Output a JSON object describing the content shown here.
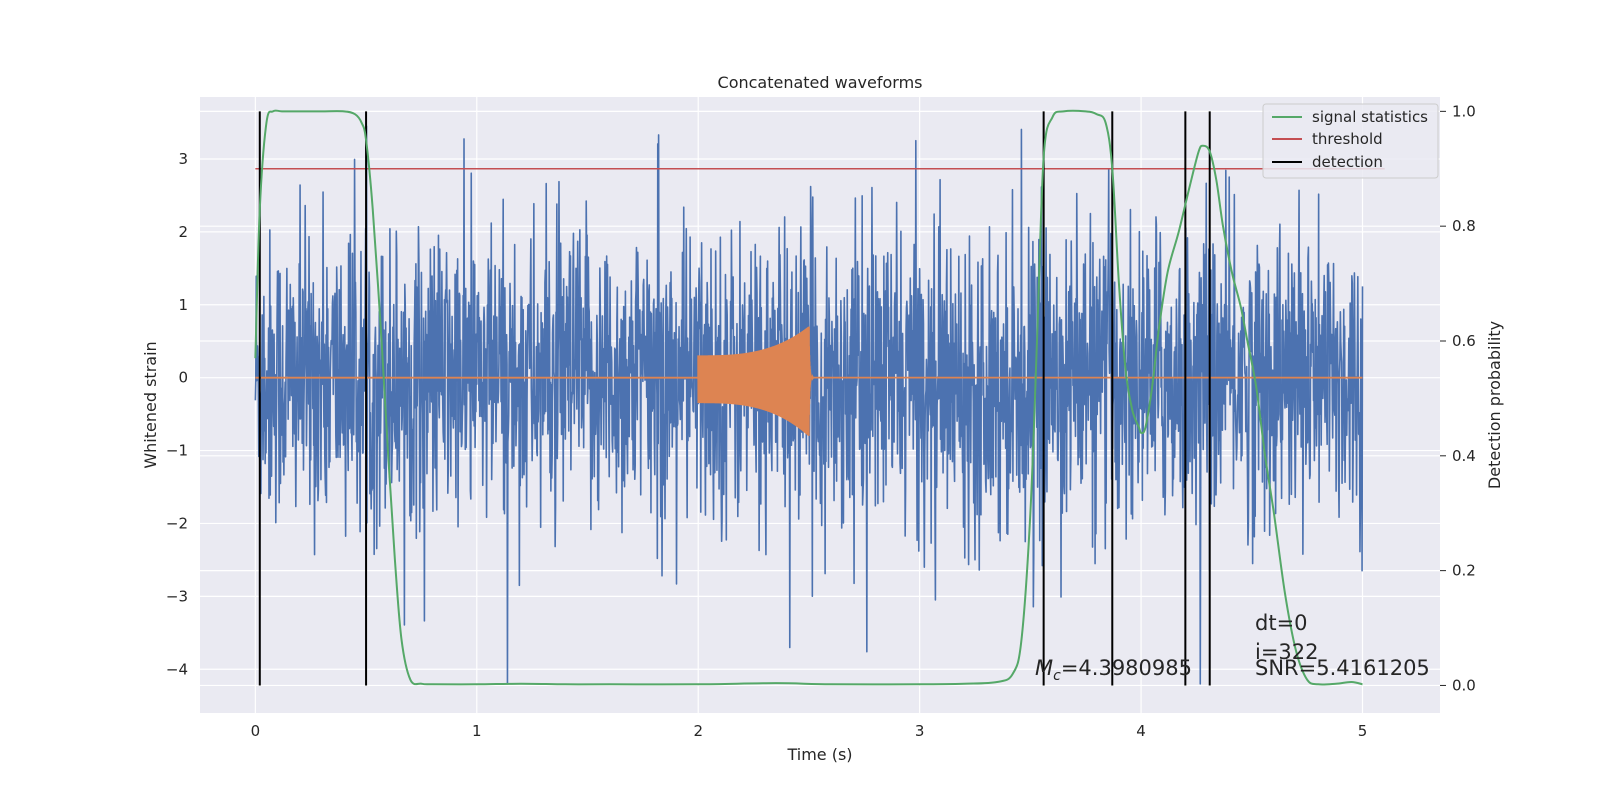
{
  "chart_data": {
    "type": "line",
    "title": "Concatenated waveforms",
    "xlabel": "Time (s)",
    "ylabel": "Whitened strain",
    "ylabel_right": "Detection probability",
    "xlim": [
      -0.25,
      5.35
    ],
    "ylim": [
      -4.6,
      3.85
    ],
    "ylim_right": [
      -0.048,
      1.025
    ],
    "xticks": [
      0,
      1,
      2,
      3,
      4,
      5
    ],
    "xtick_labels": [
      "0",
      "1",
      "2",
      "3",
      "4",
      "5"
    ],
    "yticks": [
      -4,
      -3,
      -2,
      -1,
      0,
      1,
      2,
      3
    ],
    "ytick_labels": [
      "−4",
      "−3",
      "−2",
      "−1",
      "0",
      "1",
      "2",
      "3"
    ],
    "yticks_right": [
      0.0,
      0.2,
      0.4,
      0.6,
      0.8,
      1.0
    ],
    "ytick_labels_right": [
      "0.0",
      "0.2",
      "0.4",
      "0.6",
      "0.8",
      "1.0"
    ],
    "grid": true,
    "legend_position": "top-right",
    "colors": {
      "strain": "#4c72b0",
      "template": "#dd8452",
      "signal_statistics": "#55a868",
      "threshold": "#c44e52",
      "detection": "#000000",
      "background": "#eaeaf2",
      "grid": "#ffffff"
    },
    "series": [
      {
        "name": "signal statistics",
        "axis": "right",
        "x": [
          0.0,
          0.02,
          0.05,
          0.08,
          0.12,
          0.2,
          0.3,
          0.4,
          0.45,
          0.48,
          0.5,
          0.53,
          0.57,
          0.6,
          0.63,
          0.66,
          0.7,
          0.75,
          0.8,
          1.0,
          1.2,
          1.4,
          1.6,
          2.0,
          2.35,
          2.6,
          3.0,
          3.2,
          3.35,
          3.42,
          3.46,
          3.5,
          3.53,
          3.56,
          3.6,
          3.65,
          3.75,
          3.8,
          3.84,
          3.87,
          3.9,
          3.93,
          3.96,
          3.99,
          4.0,
          4.02,
          4.05,
          4.08,
          4.12,
          4.17,
          4.22,
          4.26,
          4.28,
          4.31,
          4.34,
          4.37,
          4.41,
          4.45,
          4.48,
          4.52,
          4.56,
          4.6,
          4.65,
          4.7,
          4.75,
          4.8,
          4.88,
          4.95,
          5.0
        ],
        "y": [
          0.57,
          0.83,
          0.98,
          1.0,
          1.0,
          1.0,
          1.0,
          1.0,
          0.995,
          0.98,
          0.95,
          0.83,
          0.6,
          0.4,
          0.22,
          0.08,
          0.01,
          0.003,
          0.002,
          0.002,
          0.003,
          0.002,
          0.002,
          0.002,
          0.004,
          0.002,
          0.002,
          0.003,
          0.006,
          0.02,
          0.08,
          0.3,
          0.6,
          0.92,
          0.99,
          1.0,
          1.0,
          0.995,
          0.98,
          0.9,
          0.7,
          0.55,
          0.48,
          0.45,
          0.44,
          0.45,
          0.52,
          0.62,
          0.72,
          0.79,
          0.87,
          0.93,
          0.94,
          0.93,
          0.88,
          0.8,
          0.72,
          0.66,
          0.6,
          0.52,
          0.4,
          0.3,
          0.16,
          0.06,
          0.01,
          0.002,
          0.003,
          0.006,
          0.002
        ]
      },
      {
        "name": "threshold",
        "axis": "right",
        "x": [
          0.0,
          5.1
        ],
        "y": [
          0.9,
          0.9
        ]
      },
      {
        "name": "detection",
        "axis": "right",
        "x_positions": [
          0.02,
          0.5,
          3.56,
          3.87,
          4.2,
          4.31
        ],
        "y_range": [
          0.0,
          1.0
        ]
      },
      {
        "axis": "left",
        "kind": "noise_strain",
        "x_range": [
          0.0,
          5.0
        ],
        "typical_range": [
          -1.8,
          1.8
        ],
        "extremes": [
          -4.2,
          3.45
        ]
      },
      {
        "axis": "left",
        "kind": "injected_chirp",
        "x_range": [
          2.0,
          2.52
        ],
        "peak_x": 2.5,
        "peak_amplitude": [
          -0.8,
          0.7
        ],
        "baseline": 0.0
      }
    ],
    "annotations": [
      {
        "text": "=4.3980985",
        "prefix_symbol": "M",
        "prefix_sub": "c",
        "x": 3.5,
        "y": -3.9
      },
      {
        "text": "dt=0",
        "x": 4.5,
        "y": -3.3
      },
      {
        "text": "i=322",
        "x": 4.5,
        "y": -3.7
      },
      {
        "text": "SNR=5.4161205",
        "x": 4.5,
        "y": -3.92
      }
    ]
  }
}
